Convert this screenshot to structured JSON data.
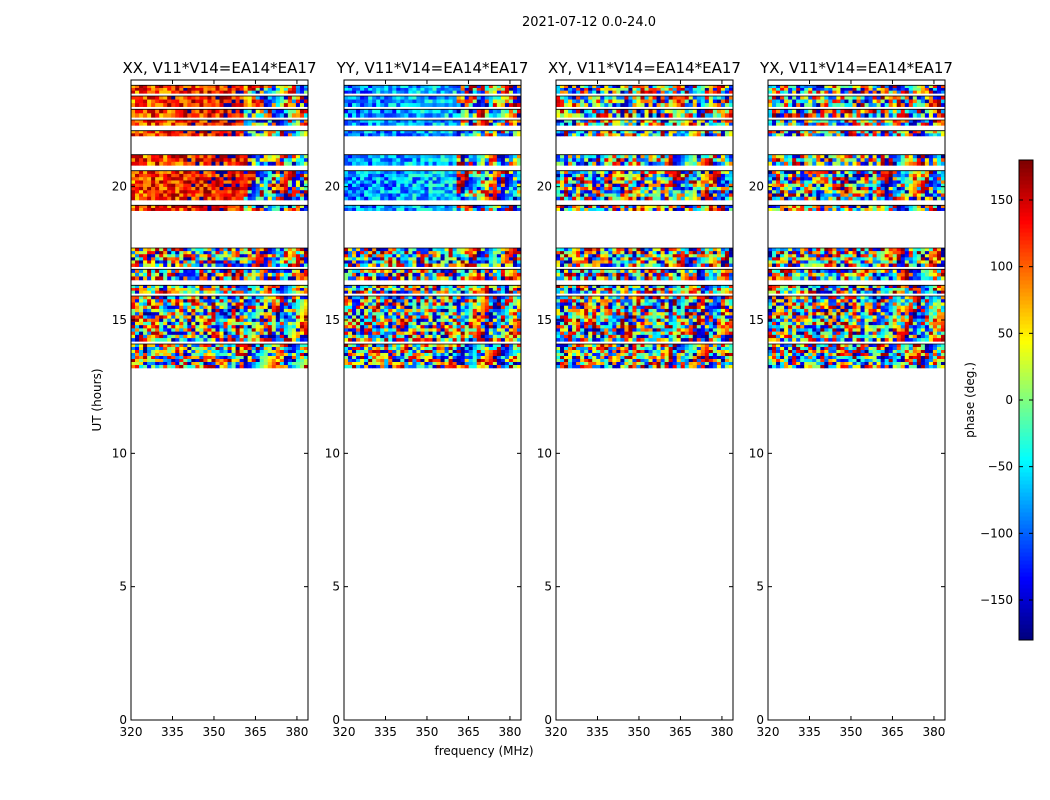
{
  "figure": {
    "suptitle": "2021-07-12 0.0-24.0"
  },
  "chart_data": {
    "type": "heatmap",
    "xlabel": "frequency (MHz)",
    "ylabel": "UT (hours)",
    "xlim": [
      320,
      384
    ],
    "ylim": [
      0,
      24
    ],
    "xticks": [
      320,
      335,
      350,
      365,
      380
    ],
    "yticks": [
      0,
      5,
      10,
      15,
      20
    ],
    "panels": [
      {
        "title": "XX, V11*V14=EA14*EA17",
        "pattern": "XX"
      },
      {
        "title": "YY, V11*V14=EA14*EA17",
        "pattern": "YY"
      },
      {
        "title": "XY, V11*V14=EA14*EA17",
        "pattern": "XY"
      },
      {
        "title": "YX, V11*V14=EA14*EA17",
        "pattern": "YX"
      }
    ],
    "data_bands_ut": [
      [
        13.2,
        14.1
      ],
      [
        14.2,
        15.9
      ],
      [
        16.0,
        16.3
      ],
      [
        16.5,
        16.9
      ],
      [
        17.0,
        17.7
      ],
      [
        19.1,
        19.3
      ],
      [
        19.5,
        20.6
      ],
      [
        20.8,
        21.2
      ],
      [
        21.9,
        22.1
      ],
      [
        22.3,
        22.5
      ],
      [
        22.6,
        22.9
      ],
      [
        23.0,
        23.4
      ],
      [
        23.5,
        23.8
      ]
    ],
    "colorbar": {
      "label": "phase (deg.)",
      "range": [
        -180,
        180
      ],
      "ticks": [
        150,
        100,
        50,
        0,
        -50,
        -100,
        -150
      ],
      "colormap": "jet"
    }
  }
}
